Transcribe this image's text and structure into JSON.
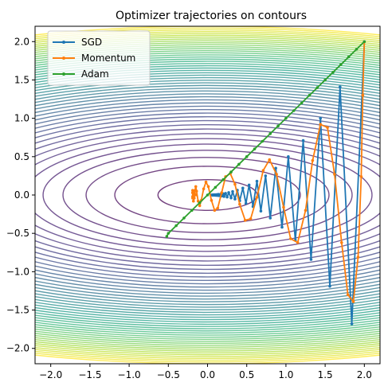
{
  "chart_data": {
    "type": "line",
    "title": "Optimizer trajectories on contours",
    "xlabel": "",
    "ylabel": "",
    "xlim": [
      -2.2,
      2.2
    ],
    "ylim": [
      -2.2,
      2.2
    ],
    "xticks": [
      -2.0,
      -1.5,
      -1.0,
      -0.5,
      0.0,
      0.5,
      1.0,
      1.5,
      2.0
    ],
    "yticks": [
      -2.0,
      -1.5,
      -1.0,
      -0.5,
      0.0,
      0.5,
      1.0,
      1.5,
      2.0
    ],
    "xtick_labels": [
      "−2.0",
      "−1.5",
      "−1.0",
      "−0.5",
      "0.0",
      "0.5",
      "1.0",
      "1.5",
      "2.0"
    ],
    "ytick_labels": [
      "−2.0",
      "−1.5",
      "−1.0",
      "−0.5",
      "0.0",
      "0.5",
      "1.0",
      "1.5",
      "2.0"
    ],
    "grid": false,
    "legend_position": "top-left",
    "contours": {
      "function": "x^2 + 10*y^2",
      "levels": [
        0.4,
        1.4,
        2.4,
        3.4,
        4.4,
        5.4,
        6.4,
        7.4,
        8.4,
        9.4,
        10.4,
        11.4,
        12.4,
        13.4,
        14.4,
        15.4,
        16.4,
        17.4,
        18.4,
        19.4,
        20.4,
        21.4,
        22.4,
        23.4,
        24.4,
        25.4,
        26.4,
        27.4,
        28.4,
        29.4,
        30.4,
        31.4,
        32.4,
        33.4,
        34.4,
        35.4,
        36.4,
        37.4,
        38.4,
        39.4,
        40.4,
        41.4,
        42.4,
        43.4,
        44.4,
        45.4,
        46.4,
        47.4,
        48.4
      ],
      "colormap": "viridis"
    },
    "series": [
      {
        "name": "SGD",
        "color": "#1f77b4",
        "x": [
          2.0,
          1.84,
          1.69,
          1.56,
          1.44,
          1.32,
          1.22,
          1.12,
          1.03,
          0.95,
          0.87,
          0.8,
          0.74,
          0.68,
          0.63,
          0.58,
          0.53,
          0.49,
          0.45,
          0.41,
          0.38,
          0.35,
          0.32,
          0.3,
          0.27,
          0.25,
          0.23,
          0.21,
          0.2,
          0.18,
          0.17,
          0.15,
          0.14,
          0.13,
          0.12,
          0.11,
          0.1,
          0.09,
          0.085,
          0.08,
          0.07,
          0.065,
          0.06,
          0.05
        ],
        "y": [
          2.0,
          -1.68,
          1.41,
          -1.19,
          1.0,
          -0.84,
          0.71,
          -0.59,
          0.5,
          -0.42,
          0.35,
          -0.3,
          0.25,
          -0.21,
          0.18,
          -0.15,
          0.13,
          -0.11,
          0.09,
          -0.075,
          0.063,
          -0.053,
          0.045,
          -0.038,
          0.032,
          -0.027,
          0.022,
          -0.019,
          0.016,
          -0.013,
          0.011,
          -0.009,
          0.008,
          -0.007,
          0.006,
          -0.005,
          0.004,
          -0.003,
          0.003,
          -0.002,
          0.002,
          -0.002,
          0.001,
          0.0
        ]
      },
      {
        "name": "Momentum",
        "color": "#ff7f0e",
        "x": [
          2.0,
          1.98,
          1.96,
          1.92,
          1.86,
          1.79,
          1.71,
          1.62,
          1.53,
          1.44,
          1.34,
          1.25,
          1.15,
          1.06,
          0.97,
          0.88,
          0.79,
          0.71,
          0.63,
          0.55,
          0.48,
          0.41,
          0.35,
          0.29,
          0.23,
          0.18,
          0.13,
          0.09,
          0.05,
          0.01,
          -0.02,
          -0.05,
          -0.08,
          -0.1,
          -0.12,
          -0.14,
          -0.15,
          -0.16,
          -0.17,
          -0.18,
          -0.18,
          -0.19,
          -0.19,
          -0.19,
          -0.19,
          -0.19,
          -0.18,
          -0.18,
          -0.17,
          -0.16,
          -0.15
        ],
        "y": [
          2.0,
          1.3,
          0.24,
          -0.81,
          -1.39,
          -1.3,
          -0.62,
          0.27,
          0.88,
          0.92,
          0.45,
          -0.2,
          -0.62,
          -0.57,
          -0.16,
          0.27,
          0.46,
          0.32,
          -0.03,
          -0.31,
          -0.33,
          -0.12,
          0.14,
          0.28,
          0.24,
          0.03,
          -0.17,
          -0.2,
          -0.07,
          0.11,
          0.17,
          0.08,
          -0.07,
          -0.14,
          -0.08,
          0.05,
          0.11,
          0.06,
          -0.04,
          -0.08,
          -0.04,
          0.03,
          0.06,
          0.03,
          -0.02,
          -0.04,
          -0.02,
          0.01,
          0.03,
          0.01,
          0.0
        ]
      },
      {
        "name": "Adam",
        "color": "#2ca02c",
        "x": [
          2.0,
          1.9,
          1.8,
          1.7,
          1.6,
          1.5,
          1.4,
          1.3,
          1.2,
          1.1,
          1.0,
          0.9,
          0.8,
          0.7,
          0.6,
          0.5,
          0.4,
          0.3,
          0.2,
          0.1,
          0.0,
          -0.1,
          -0.2,
          -0.3,
          -0.4,
          -0.5,
          -0.52
        ],
        "y": [
          2.0,
          1.9,
          1.8,
          1.7,
          1.6,
          1.5,
          1.4,
          1.3,
          1.2,
          1.1,
          1.0,
          0.9,
          0.8,
          0.7,
          0.6,
          0.5,
          0.4,
          0.3,
          0.2,
          0.1,
          0.0,
          -0.1,
          -0.2,
          -0.3,
          -0.4,
          -0.5,
          -0.54
        ]
      }
    ]
  }
}
